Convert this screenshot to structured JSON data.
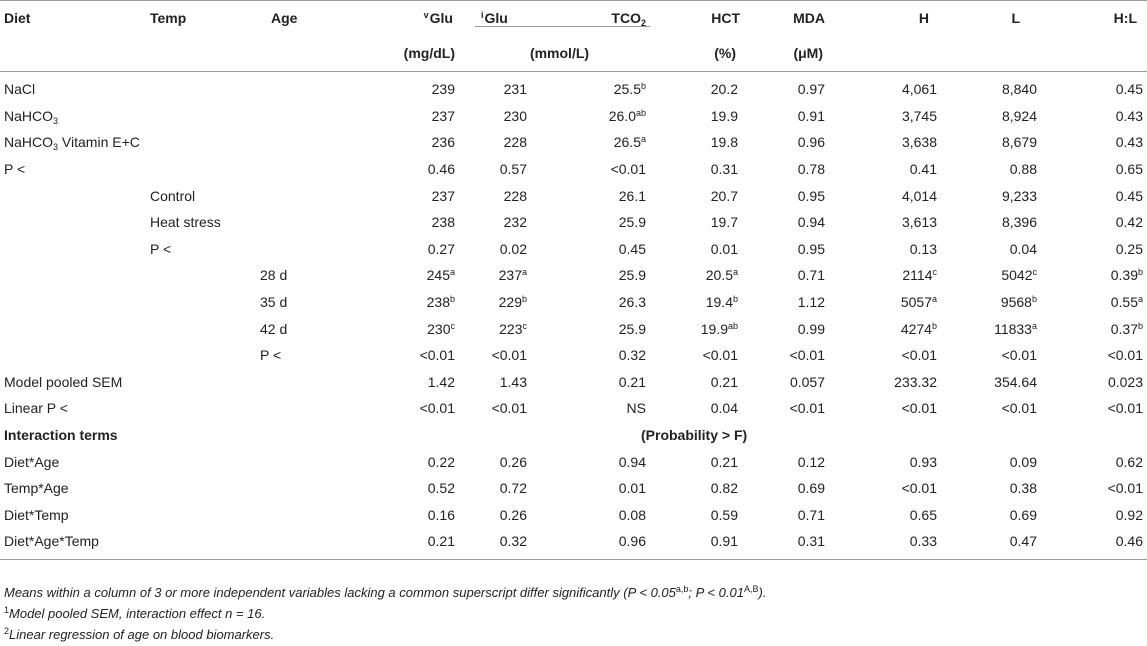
{
  "table": {
    "headers": {
      "diet": "Diet",
      "temp": "Temp",
      "age": "Age",
      "vglu_pre": "v",
      "vglu": "Glu",
      "iglu_pre": "i",
      "iglu": "Glu",
      "tco2": "TCO",
      "tco2_sub": "2",
      "hct": "HCT",
      "mda": "MDA",
      "h": "H",
      "l": "L",
      "hl": "H:L",
      "unit_mgdl": "(mg/dL)",
      "unit_mmol": "(mmol/L)",
      "unit_pct": "(%)",
      "unit_um": "(μM)"
    },
    "rows": [
      {
        "c": [
          "NaCl",
          "",
          "",
          "239",
          "231",
          "25.5",
          "20.2",
          "0.97",
          "4,061",
          "8,840",
          "0.45"
        ],
        "s": [
          "",
          "",
          "",
          "",
          "",
          "b",
          "",
          "",
          "",
          "",
          ""
        ]
      },
      {
        "c": [
          "NaHCO",
          "",
          "",
          "237",
          "230",
          "26.0",
          "19.9",
          "0.91",
          "3,745",
          "8,924",
          "0.43"
        ],
        "s": [
          "",
          "",
          "",
          "",
          "",
          "ab",
          "",
          "",
          "",
          "",
          ""
        ],
        "sub0": "3"
      },
      {
        "c": [
          "NaHCO",
          "",
          "",
          "236",
          "228",
          "26.5",
          "19.8",
          "0.96",
          "3,638",
          "8,679",
          "0.43"
        ],
        "s": [
          "",
          "",
          "",
          "",
          "",
          "a",
          "",
          "",
          "",
          "",
          ""
        ],
        "sub0": "3",
        "tail0": " Vitamin E+C"
      },
      {
        "c": [
          "P <",
          "",
          "",
          "0.46",
          "0.57",
          "<0.01",
          "0.31",
          "0.78",
          "0.41",
          "0.88",
          "0.65"
        ],
        "s": [
          "",
          "",
          "",
          "",
          "",
          "",
          "",
          "",
          "",
          "",
          ""
        ]
      },
      {
        "c": [
          "",
          "Control",
          "",
          "237",
          "228",
          "26.1",
          "20.7",
          "0.95",
          "4,014",
          "9,233",
          "0.45"
        ],
        "s": [
          "",
          "",
          "",
          "",
          "",
          "",
          "",
          "",
          "",
          "",
          ""
        ]
      },
      {
        "c": [
          "",
          "Heat stress",
          "",
          "238",
          "232",
          "25.9",
          "19.7",
          "0.94",
          "3,613",
          "8,396",
          "0.42"
        ],
        "s": [
          "",
          "",
          "",
          "",
          "",
          "",
          "",
          "",
          "",
          "",
          ""
        ]
      },
      {
        "c": [
          "",
          "P <",
          "",
          "0.27",
          "0.02",
          "0.45",
          "0.01",
          "0.95",
          "0.13",
          "0.04",
          "0.25"
        ],
        "s": [
          "",
          "",
          "",
          "",
          "",
          "",
          "",
          "",
          "",
          "",
          ""
        ]
      },
      {
        "c": [
          "",
          "",
          "28 d",
          "245",
          "237",
          "25.9",
          "20.5",
          "0.71",
          "2114",
          "5042",
          "0.39"
        ],
        "s": [
          "",
          "",
          "",
          "a",
          "a",
          "",
          "a",
          "",
          "c",
          "c",
          "b"
        ]
      },
      {
        "c": [
          "",
          "",
          "35 d",
          "238",
          "229",
          "26.3",
          "19.4",
          "1.12",
          "5057",
          "9568",
          "0.55"
        ],
        "s": [
          "",
          "",
          "",
          "b",
          "b",
          "",
          "b",
          "",
          "a",
          "b",
          "a"
        ]
      },
      {
        "c": [
          "",
          "",
          "42 d",
          "230",
          "223",
          "25.9",
          "19.9",
          "0.99",
          "4274",
          "11833",
          "0.37"
        ],
        "s": [
          "",
          "",
          "",
          "c",
          "c",
          "",
          "ab",
          "",
          "b",
          "a",
          "b"
        ]
      },
      {
        "c": [
          "",
          "",
          "P <",
          "<0.01",
          "<0.01",
          "0.32",
          "<0.01",
          "<0.01",
          "<0.01",
          "<0.01",
          "<0.01"
        ],
        "s": [
          "",
          "",
          "",
          "",
          "",
          "",
          "",
          "",
          "",
          "",
          ""
        ]
      },
      {
        "c": [
          "Model pooled SEM",
          "",
          "",
          "1.42",
          "1.43",
          "0.21",
          "0.21",
          "0.057",
          "233.32",
          "354.64",
          "0.023"
        ],
        "s": [
          "",
          "",
          "",
          "",
          "",
          "",
          "",
          "",
          "",
          "",
          ""
        ]
      },
      {
        "c": [
          "Linear P <",
          "",
          "",
          "<0.01",
          "<0.01",
          "NS",
          "0.04",
          "<0.01",
          "<0.01",
          "<0.01",
          "<0.01"
        ],
        "s": [
          "",
          "",
          "",
          "",
          "",
          "",
          "",
          "",
          "",
          "",
          ""
        ]
      },
      {
        "section": true,
        "label": "Interaction terms",
        "center": "(Probability > F)"
      },
      {
        "c": [
          "Diet*Age",
          "",
          "",
          "0.22",
          "0.26",
          "0.94",
          "0.21",
          "0.12",
          "0.93",
          "0.09",
          "0.62"
        ],
        "s": [
          "",
          "",
          "",
          "",
          "",
          "",
          "",
          "",
          "",
          "",
          ""
        ]
      },
      {
        "c": [
          "Temp*Age",
          "",
          "",
          "0.52",
          "0.72",
          "0.01",
          "0.82",
          "0.69",
          "<0.01",
          "0.38",
          "<0.01"
        ],
        "s": [
          "",
          "",
          "",
          "",
          "",
          "",
          "",
          "",
          "",
          "",
          ""
        ]
      },
      {
        "c": [
          "Diet*Temp",
          "",
          "",
          "0.16",
          "0.26",
          "0.08",
          "0.59",
          "0.71",
          "0.65",
          "0.69",
          "0.92"
        ],
        "s": [
          "",
          "",
          "",
          "",
          "",
          "",
          "",
          "",
          "",
          "",
          ""
        ]
      },
      {
        "c": [
          "Diet*Age*Temp",
          "",
          "",
          "0.21",
          "0.32",
          "0.96",
          "0.91",
          "0.31",
          "0.33",
          "0.47",
          "0.46"
        ],
        "s": [
          "",
          "",
          "",
          "",
          "",
          "",
          "",
          "",
          "",
          "",
          ""
        ]
      }
    ]
  },
  "footnotes": {
    "note1_text": "Means within a column of 3 or more independent variables lacking a common superscript differ significantly (P < 0.05",
    "note1_sup1": "a,b",
    "note1_mid": "; P < 0.01",
    "note1_sup2": "A,B",
    "note1_end": ").",
    "note2_mark": "1",
    "note2_text": "Model pooled SEM, interaction effect n = 16.",
    "note3_mark": "2",
    "note3_text": "Linear regression of age on blood biomarkers."
  }
}
